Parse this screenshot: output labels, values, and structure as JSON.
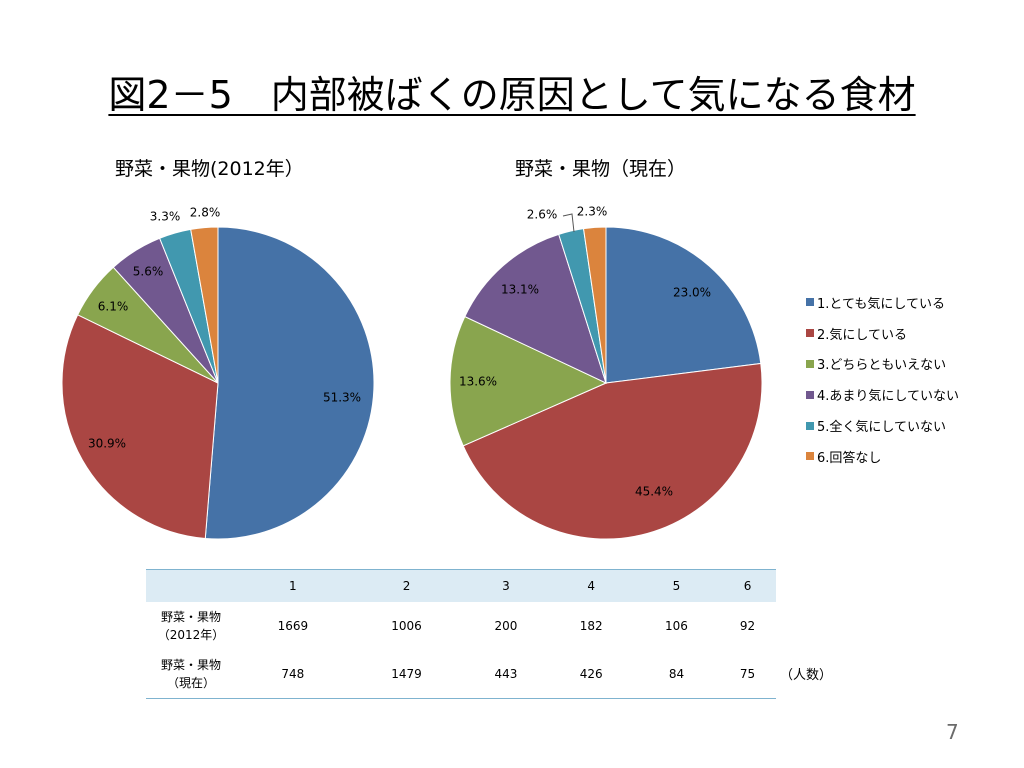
{
  "title": "図2－5　内部被ばくの原因として気になる食材",
  "colors": [
    "#4572a7",
    "#aa4643",
    "#89a54e",
    "#71588f",
    "#4198af",
    "#db843d"
  ],
  "legend": [
    "1.とても気にしている",
    "2.気にしている",
    "3.どちらともいえない",
    "4.あまり気にしていない",
    "5.全く気にしていない",
    "6.回答なし"
  ],
  "chart_data": [
    {
      "type": "pie",
      "title": "野菜・果物(2012年）",
      "categories": [
        "1.とても気にしている",
        "2.気にしている",
        "3.どちらともいえない",
        "4.あまり気にしていない",
        "5.全く気にしていない",
        "6.回答なし"
      ],
      "values": [
        51.3,
        30.9,
        6.1,
        5.6,
        3.3,
        2.8
      ],
      "data_labels": [
        "51.3%",
        "30.9%",
        "6.1%",
        "5.6%",
        "3.3%",
        "2.8%"
      ],
      "legend_placement": "right"
    },
    {
      "type": "pie",
      "title": "野菜・果物（現在）",
      "categories": [
        "1.とても気にしている",
        "2.気にしている",
        "3.どちらともいえない",
        "4.あまり気にしていない",
        "5.全く気にしていない",
        "6.回答なし"
      ],
      "values": [
        23.0,
        45.4,
        13.6,
        13.1,
        2.6,
        2.3
      ],
      "data_labels": [
        "23.0%",
        "45.4%",
        "13.6%",
        "13.1%",
        "2.6%",
        "2.3%"
      ],
      "legend_placement": "right"
    }
  ],
  "table": {
    "columns": [
      "",
      "1",
      "2",
      "3",
      "4",
      "5",
      "6"
    ],
    "rows": [
      {
        "label_line1": "野菜・果物",
        "label_line2": "（2012年）",
        "values": [
          "1669",
          "1006",
          "200",
          "182",
          "106",
          "92"
        ]
      },
      {
        "label_line1": "野菜・果物",
        "label_line2": "（現在）",
        "values": [
          "748",
          "1479",
          "443",
          "426",
          "84",
          "75"
        ]
      }
    ]
  },
  "unit_note": "（人数）",
  "page_number": "7"
}
